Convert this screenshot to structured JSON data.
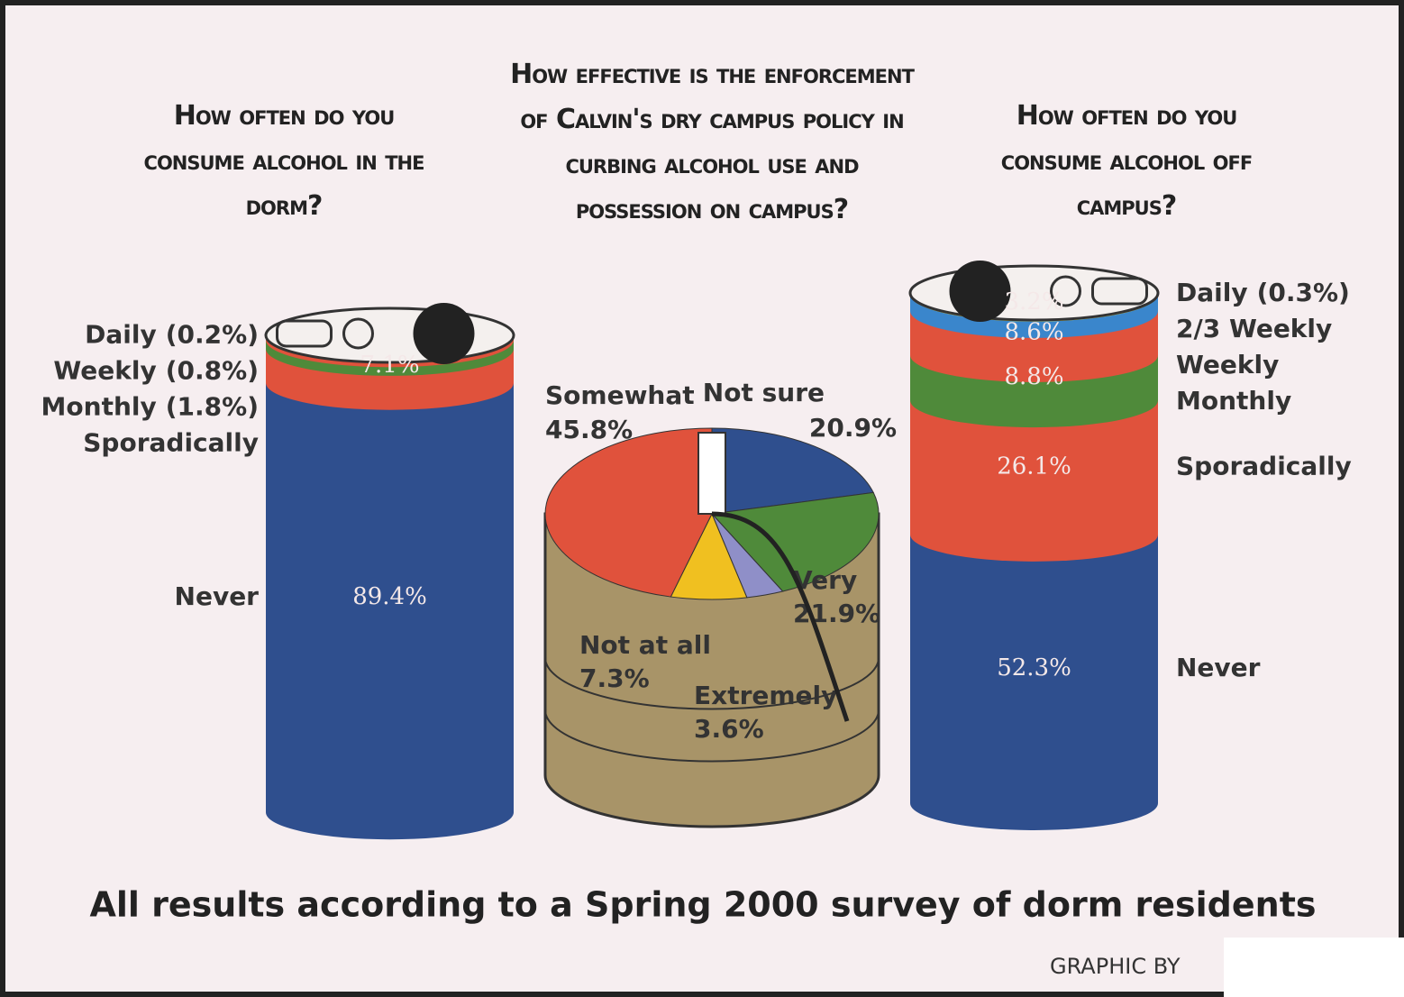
{
  "chart_data": [
    {
      "type": "stacked-can",
      "title": "How often do you consume alcohol in the dorm?",
      "categories": [
        "Daily",
        "Weekly",
        "Monthly",
        "Sporadically",
        "Never"
      ],
      "values": [
        0.2,
        0.8,
        1.8,
        7.1,
        89.4
      ],
      "value_labels": [
        "(0.2%)",
        "(0.8%)",
        "(1.8%)",
        "7.1%",
        "89.4%"
      ],
      "colors": [
        "#3a86cc",
        "#e0523c",
        "#4f8a3a",
        "#e0523c",
        "#2f4f8e"
      ]
    },
    {
      "type": "pie",
      "title": "How effective is the enforcement of Calvin's dry campus policy in curbing alcohol use and possession on campus?",
      "categories": [
        "Not sure",
        "Very",
        "Extremely",
        "Not at all",
        "Somewhat"
      ],
      "values": [
        20.9,
        21.9,
        3.6,
        7.3,
        45.8
      ],
      "value_labels": [
        "20.9%",
        "21.9%",
        "3.6%",
        "7.3%",
        "45.8%"
      ],
      "colors": [
        "#2f4f8e",
        "#4f8a3a",
        "#8f8fc8",
        "#f0c020",
        "#e0523c"
      ]
    },
    {
      "type": "stacked-can",
      "title": "How often do you consume alcohol off campus?",
      "categories": [
        "Daily",
        "2/3 Weekly",
        "Weekly",
        "Monthly",
        "Sporadically",
        "Never"
      ],
      "values": [
        0.3,
        3.2,
        8.6,
        8.8,
        26.1,
        52.3
      ],
      "value_labels": [
        "(0.3%)",
        "3.2%",
        "8.6%",
        "8.8%",
        "26.1%",
        "52.3%"
      ],
      "colors": [
        "#f2dc2a",
        "#3a86cc",
        "#e0523c",
        "#4f8a3a",
        "#e0523c",
        "#2f4f8e"
      ]
    }
  ],
  "footer": "All results according to a Spring 2000 survey of dorm residents",
  "credit": "GRAPHIC BY"
}
